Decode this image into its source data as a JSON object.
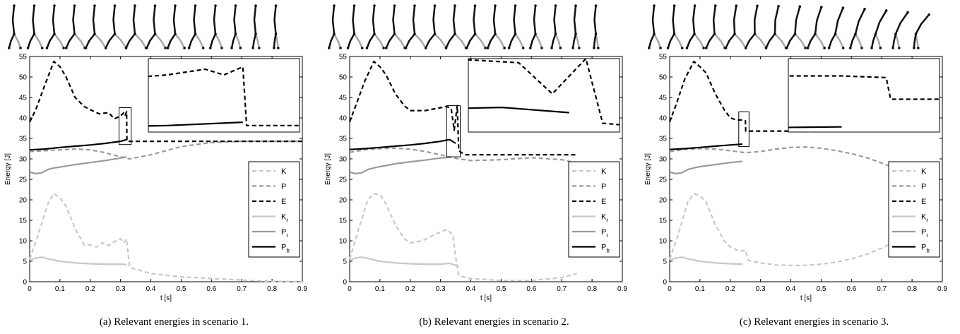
{
  "figure": {
    "panels": [
      {
        "caption": "(a)  Relevant energies in scenario 1."
      },
      {
        "caption": "(b)  Relevant energies in scenario 2."
      },
      {
        "caption": "(c)  Relevant energies in scenario 3."
      }
    ]
  },
  "legend_labels": [
    {
      "base": "K",
      "sub": ""
    },
    {
      "base": "P",
      "sub": ""
    },
    {
      "base": "E",
      "sub": ""
    },
    {
      "base": "K",
      "sub": "r"
    },
    {
      "base": "P",
      "sub": "r"
    },
    {
      "base": "P",
      "sub": "b"
    }
  ],
  "series_styles": {
    "K": {
      "color": "#c8c8c8",
      "dash": true
    },
    "P": {
      "color": "#9a9a9a",
      "dash": true
    },
    "E": {
      "color": "#000000",
      "dash": true
    },
    "Kr": {
      "color": "#c8c8c8",
      "dash": false
    },
    "Pr": {
      "color": "#9a9a9a",
      "dash": false
    },
    "Pb": {
      "color": "#000000",
      "dash": false
    }
  },
  "chart_data": [
    {
      "type": "line",
      "xlabel": "t [s]",
      "ylabel": "Energy [J]",
      "xlim": [
        0,
        0.9
      ],
      "ylim": [
        0,
        55
      ],
      "xticks": [
        "0",
        "0.1",
        "0.2",
        "0.3",
        "0.4",
        "0.5",
        "0.6",
        "0.7",
        "0.8",
        "0.9"
      ],
      "yticks": [
        "0",
        "5",
        "10",
        "15",
        "20",
        "25",
        "30",
        "35",
        "40",
        "45",
        "50",
        "55"
      ],
      "grid": false,
      "legend_position": "right",
      "series": [
        {
          "key": "K",
          "x": [
            0,
            0.03,
            0.06,
            0.08,
            0.1,
            0.12,
            0.15,
            0.18,
            0.2,
            0.22,
            0.24,
            0.26,
            0.28,
            0.3,
            0.31,
            0.32,
            0.33,
            0.4,
            0.5,
            0.6,
            0.7,
            0.8,
            0.9
          ],
          "y": [
            5.5,
            12,
            19,
            21.5,
            20.5,
            18.5,
            13,
            9,
            9,
            8.5,
            9.5,
            8.8,
            9.8,
            10.5,
            9.5,
            10.5,
            3.5,
            2,
            1.2,
            0.8,
            0.4,
            0.1,
            0
          ]
        },
        {
          "key": "P",
          "x": [
            0,
            0.05,
            0.1,
            0.15,
            0.2,
            0.25,
            0.3,
            0.33,
            0.4,
            0.5,
            0.6,
            0.7,
            0.8,
            0.9
          ],
          "y": [
            31.8,
            32,
            32.2,
            32.4,
            32.2,
            31.5,
            30.5,
            30,
            31,
            33,
            34,
            34.3,
            34.3,
            34.3
          ]
        },
        {
          "key": "E",
          "x": [
            0,
            0.02,
            0.05,
            0.08,
            0.1,
            0.12,
            0.15,
            0.18,
            0.2,
            0.23,
            0.26,
            0.28,
            0.3,
            0.31,
            0.315,
            0.32,
            0.321,
            0.33,
            0.9
          ],
          "y": [
            39,
            42,
            48,
            53.8,
            52.5,
            50,
            45,
            42.8,
            42,
            41,
            41.3,
            39.8,
            40.5,
            41.2,
            40.5,
            41.5,
            34.3,
            34.3,
            34.3
          ]
        },
        {
          "key": "Kr",
          "x": [
            0,
            0.02,
            0.04,
            0.06,
            0.1,
            0.15,
            0.2,
            0.25,
            0.3,
            0.32
          ],
          "y": [
            5.3,
            5.8,
            6,
            5.6,
            5,
            4.6,
            4.4,
            4.3,
            4.3,
            4.2
          ]
        },
        {
          "key": "Pr",
          "x": [
            0,
            0.02,
            0.04,
            0.06,
            0.08,
            0.1,
            0.15,
            0.2,
            0.25,
            0.3,
            0.32
          ],
          "y": [
            26.8,
            26.4,
            26.6,
            27.4,
            27.8,
            28,
            28.6,
            29.1,
            29.6,
            30.2,
            30.5
          ]
        },
        {
          "key": "Pb",
          "x": [
            0,
            0.05,
            0.1,
            0.15,
            0.2,
            0.25,
            0.3,
            0.32
          ],
          "y": [
            32.2,
            32.4,
            32.8,
            33.1,
            33.4,
            33.8,
            34.3,
            34.7
          ]
        }
      ],
      "zoom_box": {
        "x": [
          0.295,
          0.335
        ],
        "y": [
          33.5,
          42.5
        ]
      }
    },
    {
      "type": "line",
      "xlabel": "t [s]",
      "ylabel": "Energy [J]",
      "xlim": [
        0,
        0.9
      ],
      "ylim": [
        0,
        55
      ],
      "xticks": [
        "0",
        "0.1",
        "0.2",
        "0.3",
        "0.4",
        "0.5",
        "0.6",
        "0.7",
        "0.8",
        "0.9"
      ],
      "yticks": [
        "0",
        "5",
        "10",
        "15",
        "20",
        "25",
        "30",
        "35",
        "40",
        "45",
        "50",
        "55"
      ],
      "grid": false,
      "legend_position": "right",
      "series": [
        {
          "key": "K",
          "x": [
            0,
            0.03,
            0.06,
            0.08,
            0.1,
            0.12,
            0.15,
            0.18,
            0.2,
            0.24,
            0.28,
            0.32,
            0.34,
            0.35,
            0.36,
            0.4,
            0.5,
            0.6,
            0.7,
            0.75
          ],
          "y": [
            5.5,
            13,
            20,
            21.5,
            21.3,
            19,
            14,
            10.5,
            9.5,
            10,
            11.5,
            12.8,
            11.5,
            6,
            1.5,
            0.8,
            0.3,
            0.3,
            1,
            2
          ]
        },
        {
          "key": "P",
          "x": [
            0,
            0.05,
            0.1,
            0.15,
            0.2,
            0.25,
            0.3,
            0.33,
            0.36,
            0.4,
            0.5,
            0.6,
            0.7,
            0.75
          ],
          "y": [
            31.6,
            32.2,
            32.5,
            32.6,
            32.4,
            31.8,
            31,
            30.4,
            30,
            29.6,
            29.8,
            30.3,
            29.8,
            29
          ]
        },
        {
          "key": "E",
          "x": [
            0,
            0.02,
            0.05,
            0.08,
            0.1,
            0.12,
            0.15,
            0.18,
            0.2,
            0.25,
            0.3,
            0.32,
            0.335,
            0.345,
            0.355,
            0.36,
            0.38,
            0.45,
            0.55,
            0.65,
            0.75
          ],
          "y": [
            39,
            43,
            49,
            53.8,
            52.5,
            50.5,
            46,
            43,
            41.8,
            41.8,
            42.5,
            42.8,
            42.3,
            37,
            43,
            32,
            31,
            31,
            31,
            31,
            31
          ]
        },
        {
          "key": "Kr",
          "x": [
            0,
            0.02,
            0.04,
            0.06,
            0.1,
            0.15,
            0.2,
            0.25,
            0.3,
            0.33,
            0.36
          ],
          "y": [
            5.3,
            5.8,
            6,
            5.7,
            5,
            4.6,
            4.4,
            4.3,
            4.3,
            4.5,
            3.8
          ]
        },
        {
          "key": "Pr",
          "x": [
            0,
            0.02,
            0.04,
            0.06,
            0.08,
            0.1,
            0.15,
            0.2,
            0.25,
            0.3,
            0.33
          ],
          "y": [
            26.8,
            26.4,
            26.6,
            27.4,
            27.8,
            28.1,
            28.8,
            29.3,
            29.7,
            30.2,
            30.4
          ]
        },
        {
          "key": "Pb",
          "x": [
            0,
            0.05,
            0.1,
            0.15,
            0.2,
            0.25,
            0.3,
            0.33,
            0.35
          ],
          "y": [
            32.3,
            32.5,
            32.8,
            33.1,
            33.4,
            33.8,
            34.3,
            34.7,
            33.8
          ]
        }
      ],
      "zoom_box": {
        "x": [
          0.32,
          0.365
        ],
        "y": [
          30.5,
          43
        ]
      }
    },
    {
      "type": "line",
      "xlabel": "t [s]",
      "ylabel": "Energy [J]",
      "xlim": [
        0,
        0.9
      ],
      "ylim": [
        0,
        55
      ],
      "xticks": [
        "0",
        "0.1",
        "0.2",
        "0.3",
        "0.4",
        "0.5",
        "0.6",
        "0.7",
        "0.8",
        "0.9"
      ],
      "yticks": [
        "0",
        "5",
        "10",
        "15",
        "20",
        "25",
        "30",
        "35",
        "40",
        "45",
        "50",
        "55"
      ],
      "grid": false,
      "legend_position": "right",
      "series": [
        {
          "key": "K",
          "x": [
            0,
            0.03,
            0.06,
            0.08,
            0.1,
            0.12,
            0.15,
            0.18,
            0.2,
            0.22,
            0.24,
            0.25,
            0.26,
            0.3,
            0.35,
            0.4,
            0.45,
            0.5,
            0.55,
            0.6,
            0.65,
            0.7,
            0.75,
            0.8
          ],
          "y": [
            5.5,
            12,
            19.5,
            21.5,
            21,
            19.5,
            14,
            10,
            8.5,
            7.8,
            7.5,
            7.8,
            5.2,
            4.6,
            4.1,
            4,
            4,
            4.3,
            4.8,
            5.6,
            6.7,
            8.2,
            10,
            12.5
          ]
        },
        {
          "key": "P",
          "x": [
            0,
            0.05,
            0.1,
            0.15,
            0.2,
            0.25,
            0.3,
            0.35,
            0.4,
            0.45,
            0.5,
            0.55,
            0.6,
            0.65,
            0.7,
            0.75,
            0.8
          ],
          "y": [
            31.8,
            32.3,
            32.5,
            32.4,
            32,
            31.5,
            31.8,
            32.4,
            32.8,
            32.9,
            32.6,
            32,
            31.3,
            30.3,
            29,
            27.5,
            25.5
          ]
        },
        {
          "key": "E",
          "x": [
            0,
            0.02,
            0.05,
            0.08,
            0.1,
            0.12,
            0.15,
            0.18,
            0.2,
            0.22,
            0.24,
            0.25,
            0.251,
            0.26,
            0.35,
            0.45,
            0.55,
            0.65,
            0.75,
            0.85
          ],
          "y": [
            39,
            43,
            49.5,
            53.8,
            52.5,
            51,
            46,
            42,
            40,
            39.5,
            39.5,
            39.3,
            36.8,
            36.8,
            36.8,
            36.8,
            36.8,
            36.8,
            36.8,
            36.8
          ]
        },
        {
          "key": "Kr",
          "x": [
            0,
            0.02,
            0.04,
            0.06,
            0.1,
            0.15,
            0.2,
            0.24
          ],
          "y": [
            5.3,
            5.8,
            6,
            5.6,
            5,
            4.6,
            4.4,
            4.3
          ]
        },
        {
          "key": "Pr",
          "x": [
            0,
            0.02,
            0.04,
            0.06,
            0.08,
            0.1,
            0.15,
            0.2,
            0.24
          ],
          "y": [
            26.8,
            26.4,
            26.6,
            27.4,
            27.8,
            28.1,
            28.6,
            29.1,
            29.4
          ]
        },
        {
          "key": "Pb",
          "x": [
            0,
            0.05,
            0.1,
            0.15,
            0.2,
            0.24
          ],
          "y": [
            32.3,
            32.5,
            32.8,
            33.1,
            33.4,
            33.6
          ]
        }
      ],
      "zoom_box": {
        "x": [
          0.228,
          0.262
        ],
        "y": [
          33,
          41.5
        ]
      }
    }
  ]
}
